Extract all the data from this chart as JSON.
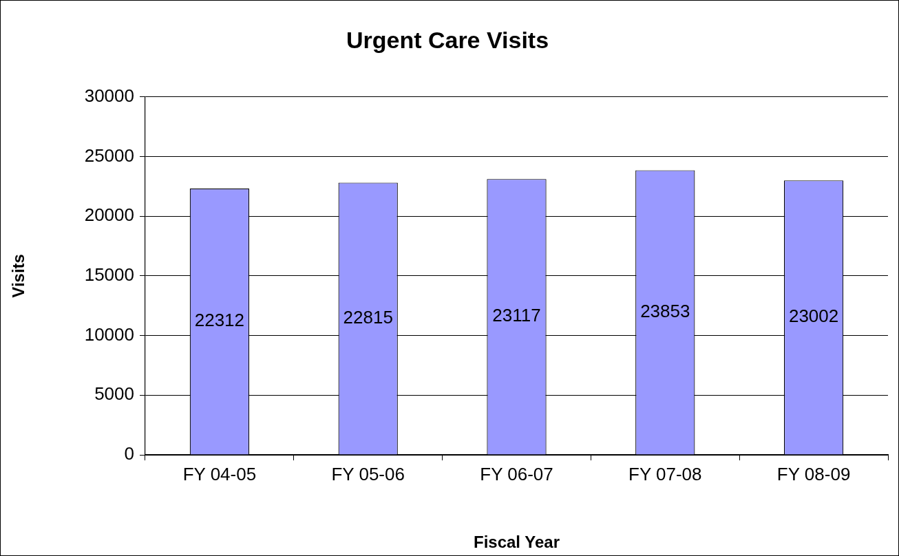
{
  "chart_data": {
    "type": "bar",
    "title": "Urgent Care Visits",
    "xlabel": "Fiscal Year",
    "ylabel": "Visits",
    "categories": [
      "FY 04-05",
      "FY 05-06",
      "FY 06-07",
      "FY 07-08",
      "FY 08-09"
    ],
    "values": [
      22312,
      22815,
      23117,
      23853,
      23002
    ],
    "color": "#9999ff",
    "ylim": [
      0,
      30000
    ],
    "yticks": [
      0,
      5000,
      10000,
      15000,
      20000,
      25000,
      30000
    ],
    "grid": "y",
    "legend": false,
    "data_labels": true
  }
}
